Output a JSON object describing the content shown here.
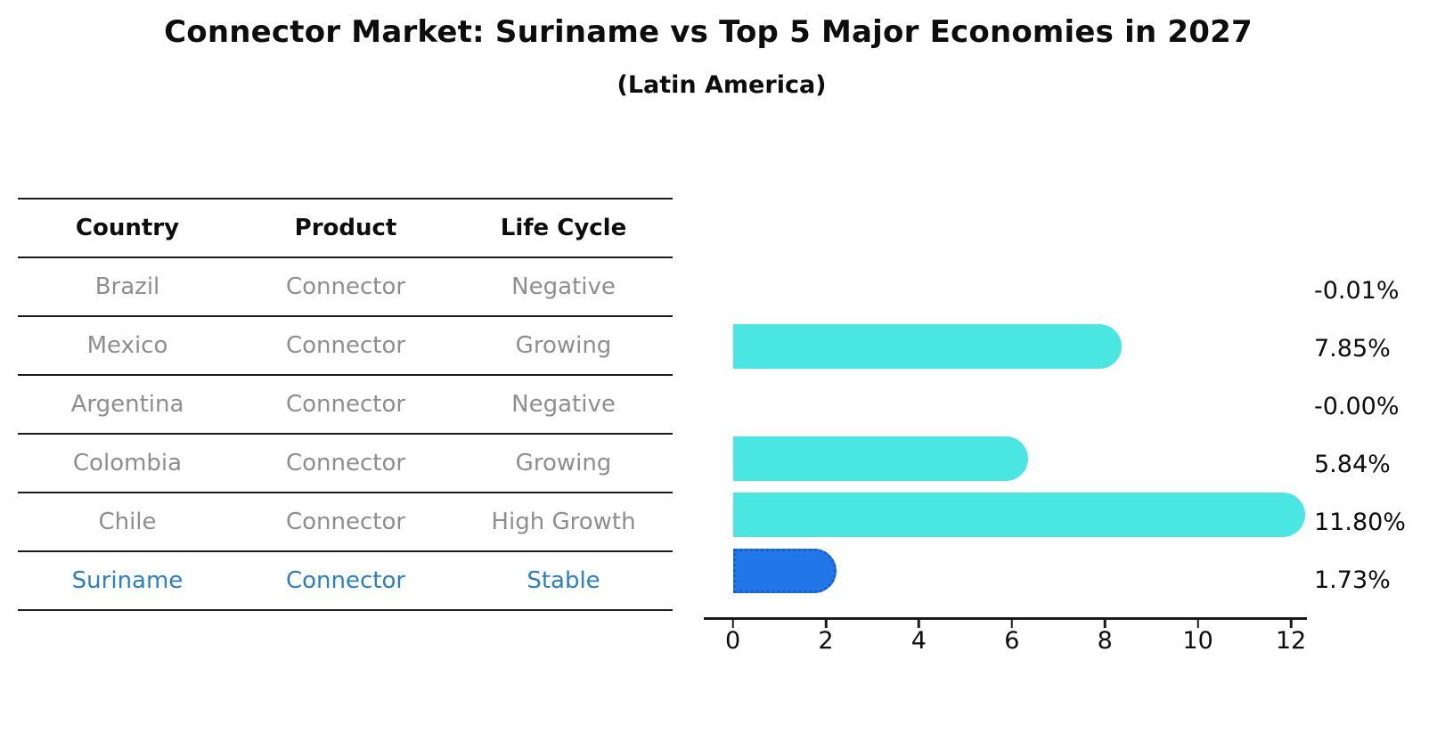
{
  "title": "Connector Market: Suriname vs Top 5 Major Economies in 2027",
  "subtitle": "(Latin America)",
  "table": {
    "headers": [
      "Country",
      "Product",
      "Life Cycle"
    ],
    "rows": [
      {
        "country": "Brazil",
        "product": "Connector",
        "life_cycle": "Negative",
        "highlighted": false
      },
      {
        "country": "Mexico",
        "product": "Connector",
        "life_cycle": "Growing",
        "highlighted": false
      },
      {
        "country": "Argentina",
        "product": "Connector",
        "life_cycle": "Negative",
        "highlighted": false
      },
      {
        "country": "Colombia",
        "product": "Connector",
        "life_cycle": "Growing",
        "highlighted": false
      },
      {
        "country": "Chile",
        "product": "Connector",
        "life_cycle": "High Growth",
        "highlighted": false
      },
      {
        "country": "Suriname",
        "product": "Connector",
        "life_cycle": "Stable",
        "highlighted": true
      }
    ]
  },
  "chart_data": {
    "type": "bar",
    "orientation": "horizontal",
    "title": "Connector Market: Suriname vs Top 5 Major Economies in 2027",
    "subtitle": "(Latin America)",
    "categories": [
      "Brazil",
      "Mexico",
      "Argentina",
      "Colombia",
      "Chile",
      "Suriname"
    ],
    "values": [
      -0.01,
      7.85,
      -0.0,
      5.84,
      11.8,
      1.73
    ],
    "value_labels": [
      "-0.01%",
      "7.85%",
      "-0.00%",
      "5.84%",
      "11.80%",
      "1.73%"
    ],
    "x_ticks": [
      0,
      2,
      4,
      6,
      8,
      10,
      12
    ],
    "xlim": [
      0,
      12
    ],
    "xlabel": "",
    "ylabel": "",
    "grid": false,
    "legend": "none",
    "highlight_index": 5,
    "bar_style": "rounded-cap, highlighted bar has dotted edge"
  },
  "colors": {
    "bar_default": "#49e6e2",
    "bar_highlight": "#2277e8",
    "bar_highlight_edge": "#1a5fc8",
    "highlight_text": "#2b7fc4",
    "table_text": "#8e8e8e",
    "heading_text": "#0d0d0d"
  }
}
